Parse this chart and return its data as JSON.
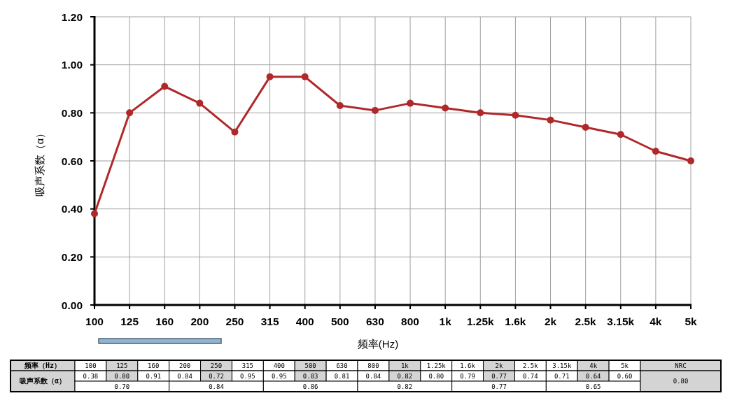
{
  "chart_data": [
    {
      "type": "line",
      "xlabel": "频率(Hz)",
      "ylabel": "吸声系数（α）",
      "categories": [
        "100",
        "125",
        "160",
        "200",
        "250",
        "315",
        "400",
        "500",
        "630",
        "800",
        "1k",
        "1.25k",
        "1.6k",
        "2k",
        "2.5k",
        "3.15k",
        "4k",
        "5k"
      ],
      "series": [
        {
          "color": "#b0282a",
          "values": [
            0.38,
            0.8,
            0.91,
            0.84,
            0.72,
            0.95,
            0.95,
            0.83,
            0.81,
            0.84,
            0.82,
            0.8,
            0.79,
            0.77,
            0.74,
            0.71,
            0.64,
            0.6
          ]
        }
      ],
      "ylim": [
        0,
        1.2
      ],
      "yticks": [
        {
          "value": 0,
          "label": "0.00"
        },
        {
          "value": 0.2,
          "label": "0.20"
        },
        {
          "value": 0.4,
          "label": "0.40"
        },
        {
          "value": 0.6,
          "label": "0.60"
        },
        {
          "value": 0.8,
          "label": "0.80"
        },
        {
          "value": 1.0,
          "label": "1.00"
        },
        {
          "value": 1.2,
          "label": "1.20"
        }
      ],
      "grid": true,
      "marker": "circle",
      "line_style": "solid"
    },
    {
      "type": "other",
      "categories": [
        "100",
        "125",
        "160",
        "200",
        "250",
        "315",
        "400",
        "500",
        "630",
        "800",
        "1k",
        "1.25k",
        "1.6k",
        "2k",
        "2.5k",
        "3.15k",
        "4k",
        "5k"
      ],
      "annotations": [
        "频率（Hz）",
        "吸声系数（α）",
        "0.38",
        "0.80",
        "0.91",
        "0.84",
        "0.72",
        "0.95",
        "0.95",
        "0.83",
        "0.81",
        "0.84",
        "0.82",
        "0.80",
        "0.79",
        "0.77",
        "0.74",
        "0.71",
        "0.64",
        "0.60",
        "0.70",
        "0.84",
        "0.86",
        "0.82",
        "0.77",
        "0.65",
        "NRC",
        "0.80"
      ]
    }
  ]
}
